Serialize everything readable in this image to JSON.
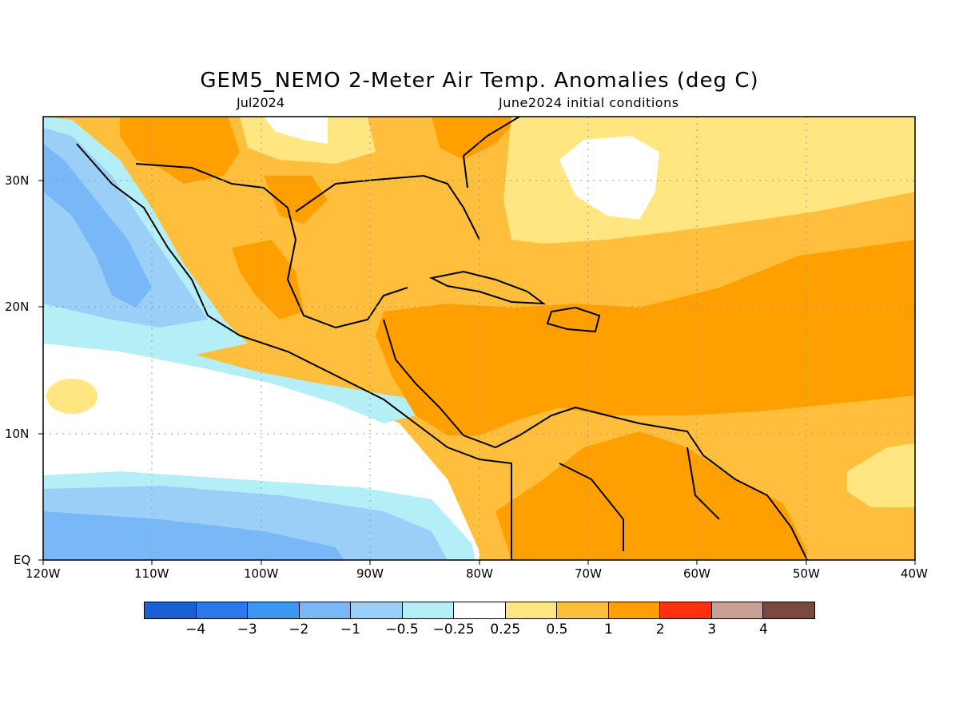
{
  "header": {
    "title": "GEM5_NEMO 2-Meter Air Temp. Anomalies (deg C)",
    "subtitle_left": "Jul2024",
    "subtitle_right": "June2024 initial conditions"
  },
  "map": {
    "region": "Caribbean / Gulf of Mexico / Eastern Pacific",
    "lon_range": [
      -120,
      -40
    ],
    "lat_range": [
      0,
      35
    ],
    "lon_ticks": [
      "120W",
      "110W",
      "100W",
      "90W",
      "80W",
      "70W",
      "60W",
      "50W",
      "40W"
    ],
    "lat_ticks": [
      "EQ",
      "10N",
      "20N",
      "30N"
    ],
    "gridlines": "dotted"
  },
  "colorbar": {
    "colors": [
      "#1a60d2",
      "#2a78ea",
      "#3c96f2",
      "#78b8f6",
      "#9ccff8",
      "#b4eef6",
      "#ffffff",
      "#ffe680",
      "#ffbe3c",
      "#ffa000",
      "#ff3010",
      "#c8a096",
      "#784a40"
    ],
    "labels": [
      "-4",
      "-3",
      "-2",
      "-1",
      "-0.5",
      "-0.25",
      "0.25",
      "0.5",
      "1",
      "2",
      "3",
      "4"
    ]
  }
}
